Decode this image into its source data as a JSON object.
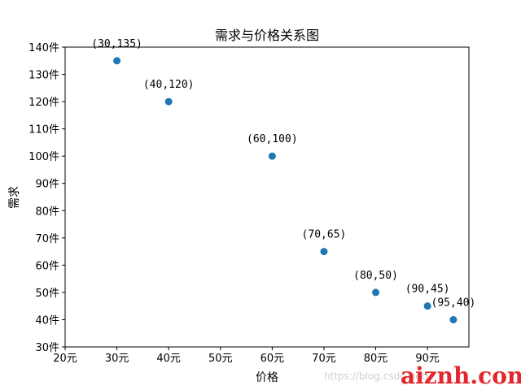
{
  "chart_data": {
    "type": "scatter",
    "title": "需求与价格关系图",
    "xlabel": "价格",
    "ylabel": "需求",
    "xlim": [
      20,
      98
    ],
    "ylim": [
      30,
      140
    ],
    "x_ticks": [
      20,
      30,
      40,
      50,
      60,
      70,
      80,
      90
    ],
    "y_ticks": [
      30,
      40,
      50,
      60,
      70,
      80,
      90,
      100,
      110,
      120,
      130,
      140
    ],
    "x_unit": "元",
    "y_unit": "件",
    "grid": false,
    "color": "#1f77b4",
    "points": [
      {
        "x": 30,
        "y": 135,
        "label": "(30,135)"
      },
      {
        "x": 40,
        "y": 120,
        "label": "(40,120)"
      },
      {
        "x": 60,
        "y": 100,
        "label": "(60,100)"
      },
      {
        "x": 70,
        "y": 65,
        "label": "(70,65)"
      },
      {
        "x": 80,
        "y": 50,
        "label": "(80,50)"
      },
      {
        "x": 90,
        "y": 45,
        "label": "(90,45)"
      },
      {
        "x": 95,
        "y": 40,
        "label": "(95,40)"
      }
    ]
  },
  "watermark": {
    "url_text": "https://blog.csdn.net/",
    "brand_text": "aiznh.com"
  }
}
